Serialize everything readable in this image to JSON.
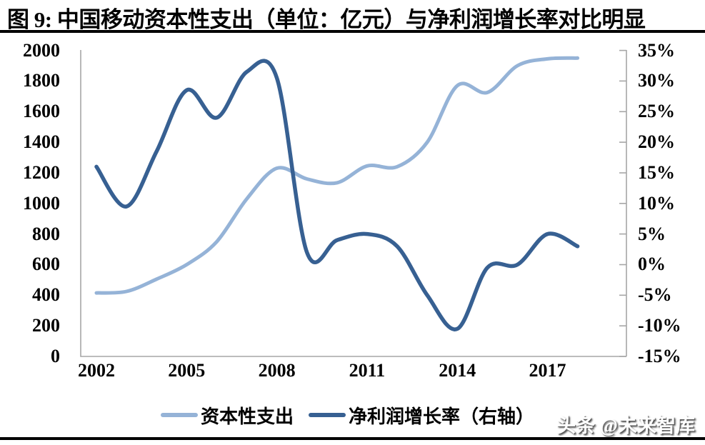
{
  "header": {
    "title": "图 9: 中国移动资本性支出（单位：亿元）与净利润增长率对比明显"
  },
  "watermark": {
    "text": "头条 @未来智库"
  },
  "chart_data": {
    "type": "line",
    "smooth": true,
    "grid": false,
    "legend_position": "bottom",
    "title": "图 9: 中国移动资本性支出（单位：亿元）与净利润增长率对比明显",
    "x": [
      2002,
      2003,
      2004,
      2005,
      2006,
      2007,
      2008,
      2009,
      2010,
      2011,
      2012,
      2013,
      2014,
      2015,
      2016,
      2017,
      2018
    ],
    "x_axis_tick_labels": [
      "2002",
      "2005",
      "2008",
      "2011",
      "2014",
      "2017"
    ],
    "left_axis": {
      "min": 0,
      "max": 2000,
      "step": 200,
      "tick_labels": [
        "2000",
        "1800",
        "1600",
        "1400",
        "1200",
        "1000",
        "800",
        "600",
        "400",
        "200",
        "0"
      ]
    },
    "right_axis": {
      "min": -15,
      "max": 35,
      "step": 5,
      "unit": "%",
      "tick_labels": [
        "35%",
        "30%",
        "25%",
        "20%",
        "15%",
        "10%",
        "5%",
        "0%",
        "-5%",
        "-10%",
        "-15%"
      ]
    },
    "series": [
      {
        "name": "资本性支出",
        "axis": "left",
        "unit": "亿元",
        "color": "#95B3D7",
        "values": [
          415,
          425,
          505,
          600,
          750,
          1030,
          1230,
          1160,
          1135,
          1245,
          1240,
          1400,
          1770,
          1725,
          1900,
          1945,
          1950
        ]
      },
      {
        "name": "净利润增长率（右轴）",
        "axis": "right",
        "unit": "%",
        "color": "#376092",
        "values": [
          16,
          9.5,
          18.5,
          28.5,
          24,
          31.5,
          30.5,
          2,
          4,
          5,
          3,
          -5,
          -10.5,
          -0.5,
          0,
          5,
          3
        ]
      }
    ],
    "axis_color": "#A6A6A6"
  }
}
